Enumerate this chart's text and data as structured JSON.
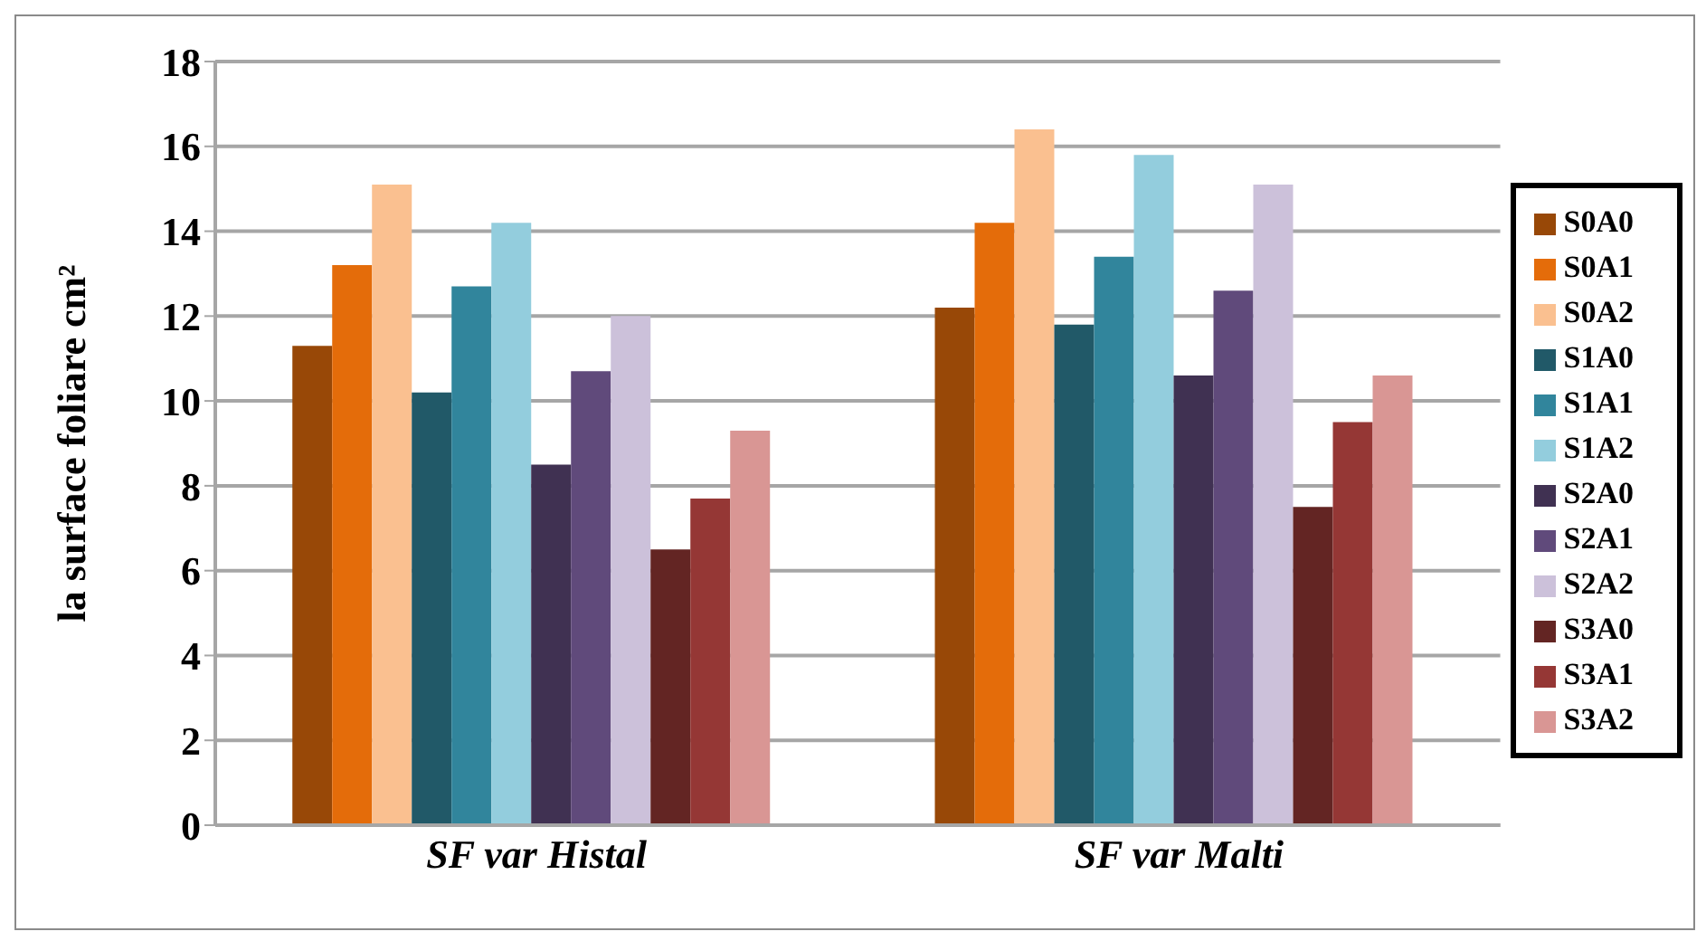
{
  "chart_data": {
    "type": "bar",
    "ylabel": "la surface  foliare cm²",
    "categories": [
      "SF var Histal",
      "SF var Malti"
    ],
    "series": [
      {
        "name": "S0A0",
        "color": "#984807",
        "values": [
          11.3,
          12.2
        ]
      },
      {
        "name": "S0A1",
        "color": "#e46c0a",
        "values": [
          13.2,
          14.2
        ]
      },
      {
        "name": "S0A2",
        "color": "#fac090",
        "values": [
          15.1,
          16.4
        ]
      },
      {
        "name": "S1A0",
        "color": "#215968",
        "values": [
          10.2,
          11.8
        ]
      },
      {
        "name": "S1A1",
        "color": "#31859c",
        "values": [
          12.7,
          13.4
        ]
      },
      {
        "name": "S1A2",
        "color": "#93cddd",
        "values": [
          14.2,
          15.8
        ]
      },
      {
        "name": "S2A0",
        "color": "#403152",
        "values": [
          8.5,
          10.6
        ]
      },
      {
        "name": "S2A1",
        "color": "#604a7b",
        "values": [
          10.7,
          12.6
        ]
      },
      {
        "name": "S2A2",
        "color": "#ccc1da",
        "values": [
          12.0,
          15.1
        ]
      },
      {
        "name": "S3A0",
        "color": "#632523",
        "values": [
          6.5,
          7.5
        ]
      },
      {
        "name": "S3A1",
        "color": "#953735",
        "values": [
          7.7,
          9.5
        ]
      },
      {
        "name": "S3A2",
        "color": "#d99694",
        "values": [
          9.3,
          10.6
        ]
      }
    ],
    "ylim": [
      0,
      18
    ],
    "yticks": [
      0,
      2,
      4,
      6,
      8,
      10,
      12,
      14,
      16,
      18
    ],
    "grid": "y",
    "legend": "right"
  }
}
